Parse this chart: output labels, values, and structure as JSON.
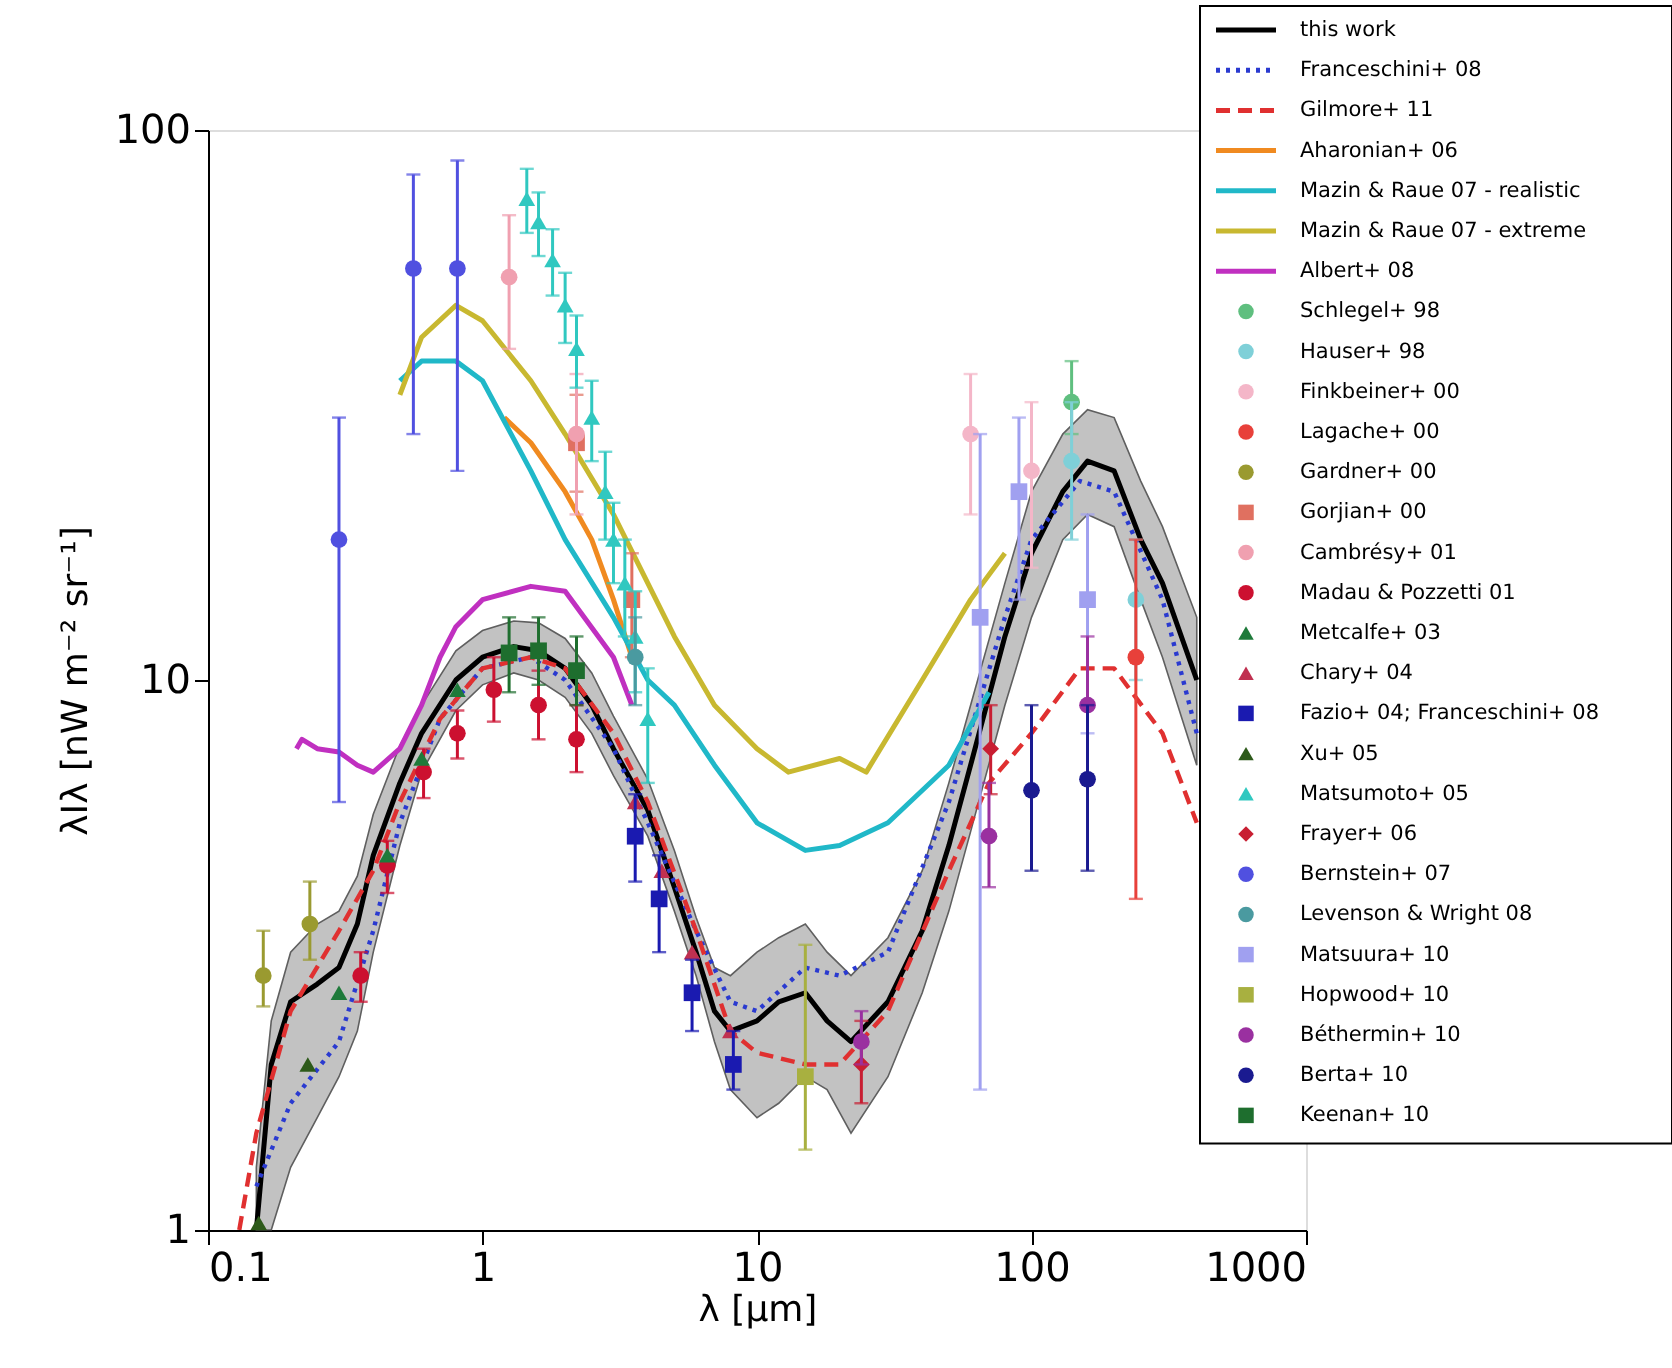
{
  "chart_data": {
    "type": "line",
    "xlabel": "λ [μm]",
    "ylabel": "λIλ [nW m⁻² sr⁻¹]",
    "xlim": [
      0.1,
      1000
    ],
    "ylim": [
      1,
      100
    ],
    "xticks": [
      0.1,
      1,
      10,
      100,
      1000
    ],
    "yticks": [
      1,
      10,
      100
    ],
    "log": "xy",
    "grid": false,
    "legend": "top right",
    "series": [
      {
        "name": "this work",
        "color": "#000000",
        "line_style": "solid",
        "x": [
          0.15,
          0.17,
          0.2,
          0.25,
          0.3,
          0.35,
          0.4,
          0.5,
          0.6,
          0.8,
          1,
          1.3,
          1.6,
          2,
          2.5,
          3,
          4,
          5,
          6,
          7,
          8,
          10,
          12,
          15,
          18,
          22,
          30,
          40,
          50,
          60,
          80,
          100,
          130,
          160,
          200,
          250,
          300,
          400
        ],
        "values": [
          1.0,
          2.0,
          2.6,
          2.8,
          3.0,
          3.6,
          4.8,
          6.5,
          8.0,
          10.0,
          11.0,
          11.5,
          11.3,
          10.5,
          9.0,
          7.5,
          5.8,
          4.2,
          3.2,
          2.5,
          2.3,
          2.4,
          2.6,
          2.7,
          2.4,
          2.2,
          2.6,
          3.5,
          5.0,
          7.0,
          12,
          17,
          22,
          25,
          24,
          18,
          15,
          10
        ],
        "lower": [
          1.0,
          1.0,
          1.3,
          1.6,
          1.9,
          2.3,
          3.2,
          5.0,
          6.8,
          8.8,
          9.8,
          10.3,
          10.0,
          9.3,
          8.0,
          6.7,
          5.2,
          3.8,
          2.9,
          2.2,
          1.8,
          1.6,
          1.7,
          1.9,
          1.8,
          1.5,
          1.9,
          2.7,
          3.8,
          5.3,
          9,
          13,
          18,
          20,
          19,
          14,
          11,
          7
        ],
        "upper": [
          1.3,
          2.4,
          3.2,
          3.6,
          3.8,
          4.4,
          5.7,
          7.6,
          9.0,
          11.3,
          12.3,
          12.8,
          12.7,
          11.9,
          10.3,
          8.6,
          6.6,
          4.9,
          3.7,
          3.0,
          2.9,
          3.2,
          3.4,
          3.6,
          3.2,
          2.9,
          3.4,
          4.5,
          6.5,
          9.0,
          15,
          22,
          28,
          31,
          30,
          23,
          19,
          13
        ]
      },
      {
        "name": "Franceschini+ 08",
        "color": "#2a3ad0",
        "line_style": "dotted",
        "x": [
          0.15,
          0.2,
          0.3,
          0.4,
          0.5,
          0.7,
          1,
          1.5,
          2,
          3,
          4,
          6,
          8,
          10,
          15,
          20,
          30,
          50,
          80,
          100,
          150,
          200,
          300,
          400
        ],
        "values": [
          1.2,
          1.7,
          2.2,
          3.5,
          5.5,
          8.5,
          10.5,
          11,
          10,
          7.5,
          5.5,
          3.5,
          2.6,
          2.5,
          3.0,
          2.9,
          3.2,
          6,
          13,
          18,
          23,
          22,
          14,
          8
        ]
      },
      {
        "name": "Gilmore+ 11",
        "color": "#e03030",
        "line_style": "dashed",
        "x": [
          0.13,
          0.15,
          0.2,
          0.3,
          0.4,
          0.5,
          0.7,
          1,
          1.5,
          2,
          3,
          4,
          6,
          8,
          10,
          15,
          20,
          30,
          50,
          70,
          100,
          150,
          200,
          300,
          400
        ],
        "values": [
          1.0,
          1.5,
          2.5,
          3.5,
          4.5,
          6,
          8.5,
          10.5,
          11,
          10.5,
          8,
          6,
          3.5,
          2.3,
          2.1,
          2.0,
          2.0,
          2.5,
          4.5,
          6.5,
          8,
          10.5,
          10.5,
          8,
          5.5
        ]
      },
      {
        "name": "Aharonian+ 06",
        "color": "#f08a20",
        "line_style": "solid",
        "x": [
          1.2,
          1.5,
          2,
          2.5,
          3,
          3.5
        ],
        "values": [
          30,
          27,
          22,
          18,
          14,
          11
        ]
      },
      {
        "name": "Mazin & Raue 07 - realistic",
        "color": "#20b8c8",
        "line_style": "solid",
        "x": [
          0.5,
          0.6,
          0.8,
          1,
          1.5,
          2,
          3,
          4,
          5,
          7,
          10,
          15,
          20,
          30,
          50,
          70
        ],
        "values": [
          35,
          38,
          38,
          35,
          24,
          18,
          13,
          10,
          9,
          7,
          5.5,
          4.9,
          5.0,
          5.5,
          7,
          9.5
        ]
      },
      {
        "name": "Mazin & Raue 07 - extreme",
        "color": "#c8b830",
        "line_style": "solid",
        "x": [
          0.5,
          0.6,
          0.8,
          1,
          1.5,
          2,
          3,
          4,
          5,
          7,
          10,
          13,
          20,
          25,
          40,
          60,
          80
        ],
        "values": [
          33,
          42,
          48,
          45,
          35,
          28,
          20,
          15,
          12,
          9,
          7.5,
          6.8,
          7.2,
          6.8,
          10,
          14,
          17
        ]
      },
      {
        "name": "Albert+ 08",
        "color": "#c030c0",
        "line_style": "solid",
        "x": [
          0.21,
          0.22,
          0.25,
          0.3,
          0.35,
          0.4,
          0.5,
          0.6,
          0.7,
          0.8,
          1,
          1.5,
          2,
          3,
          3.5
        ],
        "values": [
          7.5,
          7.8,
          7.5,
          7.4,
          7.0,
          6.8,
          7.5,
          9,
          11,
          12.5,
          14,
          14.8,
          14.5,
          11,
          9
        ]
      },
      {
        "name": "Schlegel+ 98",
        "type": "scatter",
        "color": "#5fbf7f",
        "marker": "circle",
        "x": [
          140
        ],
        "values": [
          32
        ],
        "errors": [
          [
            28,
            38
          ]
        ]
      },
      {
        "name": "Hauser+ 98",
        "type": "scatter",
        "color": "#7fd0d8",
        "marker": "circle",
        "x": [
          140,
          240
        ],
        "values": [
          25,
          14
        ],
        "errors": [
          [
            18,
            32
          ],
          [
            10,
            18
          ]
        ]
      },
      {
        "name": "Finkbeiner+ 00",
        "type": "scatter",
        "color": "#f4b6c8",
        "marker": "circle",
        "x": [
          60,
          100
        ],
        "values": [
          28,
          24
        ],
        "errors": [
          [
            20,
            36
          ],
          [
            16,
            32
          ]
        ]
      },
      {
        "name": "Lagache+ 00",
        "type": "scatter",
        "color": "#e8403a",
        "marker": "circle",
        "x": [
          240
        ],
        "values": [
          11
        ],
        "errors": [
          [
            4,
            18
          ]
        ]
      },
      {
        "name": "Gardner+ 00",
        "type": "scatter",
        "color": "#9a9a30",
        "marker": "circle",
        "x": [
          0.159,
          0.235
        ],
        "values": [
          2.9,
          3.6
        ],
        "errors": [
          [
            2.55,
            3.5
          ],
          [
            3.1,
            4.3
          ]
        ]
      },
      {
        "name": "Gorjian+ 00",
        "type": "scatter",
        "color": "#e07060",
        "marker": "square",
        "x": [
          2.2,
          3.5
        ],
        "values": [
          27,
          14
        ],
        "errors": [
          [
            22,
            33
          ],
          [
            11,
            17
          ]
        ]
      },
      {
        "name": "Cambrésy+ 01",
        "type": "scatter",
        "color": "#f0a0b0",
        "marker": "circle",
        "x": [
          1.25,
          2.2
        ],
        "values": [
          54,
          28
        ],
        "errors": [
          [
            40,
            70
          ],
          [
            20,
            36
          ]
        ]
      },
      {
        "name": "Madau & Pozzetti 01",
        "type": "scatter",
        "color": "#cc1030",
        "marker": "circle",
        "x": [
          0.36,
          0.45,
          0.61,
          0.81,
          1.1,
          1.6,
          2.2
        ],
        "values": [
          2.9,
          4.6,
          6.8,
          8.0,
          9.6,
          9.0,
          7.8
        ],
        "errors": [
          [
            2.6,
            3.2
          ],
          [
            4.1,
            5.1
          ],
          [
            6.1,
            7.5
          ],
          [
            7.2,
            8.8
          ],
          [
            8.4,
            11
          ],
          [
            7.8,
            10.4
          ],
          [
            6.8,
            9.0
          ]
        ]
      },
      {
        "name": "Metcalfe+ 03",
        "type": "scatter",
        "color": "#1e7a3a",
        "marker": "triangle",
        "x": [
          0.3,
          0.45,
          0.6,
          0.81
        ],
        "values": [
          2.7,
          4.8,
          7.2,
          9.6
        ]
      },
      {
        "name": "Chary+ 04",
        "type": "scatter",
        "color": "#c03050",
        "marker": "triangle",
        "x": [
          3.6,
          4.5,
          5.8,
          8.0
        ],
        "values": [
          6.0,
          4.5,
          3.2,
          2.3
        ]
      },
      {
        "name": "Fazio+ 04; Franceschini+ 08",
        "type": "scatter",
        "color": "#1a1ab0",
        "marker": "square",
        "x": [
          3.6,
          4.4,
          5.8,
          8.2
        ],
        "values": [
          5.2,
          4.0,
          2.7,
          2.0
        ],
        "errors": [
          [
            4.3,
            6.2
          ],
          [
            3.2,
            4.8
          ],
          [
            2.3,
            3.1
          ],
          [
            1.8,
            2.3
          ]
        ]
      },
      {
        "name": "Xu+ 05",
        "type": "scatter",
        "color": "#2d5a1a",
        "marker": "triangle",
        "x": [
          0.153,
          0.231
        ],
        "values": [
          1.03,
          2.0
        ]
      },
      {
        "name": "Matsumoto+ 05",
        "type": "scatter",
        "color": "#30c8c0",
        "marker": "triangle",
        "x": [
          1.45,
          1.6,
          1.8,
          2.0,
          2.2,
          2.5,
          2.8,
          3.0,
          3.3,
          3.6,
          4.0
        ],
        "values": [
          75,
          68,
          58,
          48,
          40,
          30,
          22,
          18,
          15,
          12,
          8.5
        ],
        "errors": [
          10,
          9,
          8,
          7,
          6,
          5,
          4,
          3,
          3,
          2.5,
          2
        ]
      },
      {
        "name": "Frayer+ 06",
        "type": "scatter",
        "color": "#c81e32",
        "marker": "diamond",
        "x": [
          24,
          71
        ],
        "values": [
          2.0,
          7.5
        ],
        "errors": [
          [
            1.7,
            2.4
          ],
          [
            6.2,
            9.0
          ]
        ]
      },
      {
        "name": "Bernstein+ 07",
        "type": "scatter",
        "color": "#5050e0",
        "marker": "circle",
        "x": [
          0.3,
          0.56,
          0.81
        ],
        "values": [
          18,
          56,
          56
        ],
        "errors": [
          [
            6,
            30
          ],
          [
            28,
            83
          ],
          [
            24,
            88
          ]
        ]
      },
      {
        "name": "Levenson & Wright 08",
        "type": "scatter",
        "color": "#4a9aa0",
        "marker": "circle",
        "x": [
          3.6
        ],
        "values": [
          11
        ],
        "errors": [
          [
            9,
            13
          ]
        ]
      },
      {
        "name": "Matsuura+ 10",
        "type": "scatter",
        "color": "#a0a0f0",
        "marker": "square",
        "x": [
          65,
          90,
          160
        ],
        "values": [
          13,
          22,
          14
        ],
        "errors": [
          [
            1.8,
            28
          ],
          [
            14,
            30
          ],
          [
            8,
            20
          ]
        ]
      },
      {
        "name": "Hopwood+ 10",
        "type": "scatter",
        "color": "#a8b040",
        "marker": "square",
        "x": [
          15
        ],
        "values": [
          1.9
        ],
        "errors": [
          [
            1.4,
            3.3
          ]
        ]
      },
      {
        "name": "Béthermin+ 10",
        "type": "scatter",
        "color": "#9a30a0",
        "marker": "circle",
        "x": [
          24,
          70,
          160
        ],
        "values": [
          2.2,
          5.2,
          9.0
        ],
        "errors": [
          [
            2.0,
            2.5
          ],
          [
            4.2,
            6.5
          ],
          [
            6.5,
            12
          ]
        ]
      },
      {
        "name": "Berta+ 10",
        "type": "scatter",
        "color": "#1a1a90",
        "marker": "circle",
        "x": [
          100,
          160
        ],
        "values": [
          6.3,
          6.6
        ],
        "errors": [
          [
            4.5,
            9
          ],
          [
            4.5,
            9
          ]
        ]
      },
      {
        "name": "Keenan+ 10",
        "type": "scatter",
        "color": "#1e6e2e",
        "marker": "square",
        "x": [
          1.25,
          1.6,
          2.2
        ],
        "values": [
          11.2,
          11.3,
          10.4
        ],
        "errors": [
          [
            9.5,
            13
          ],
          [
            9.8,
            13
          ],
          [
            9,
            12
          ]
        ]
      }
    ]
  }
}
